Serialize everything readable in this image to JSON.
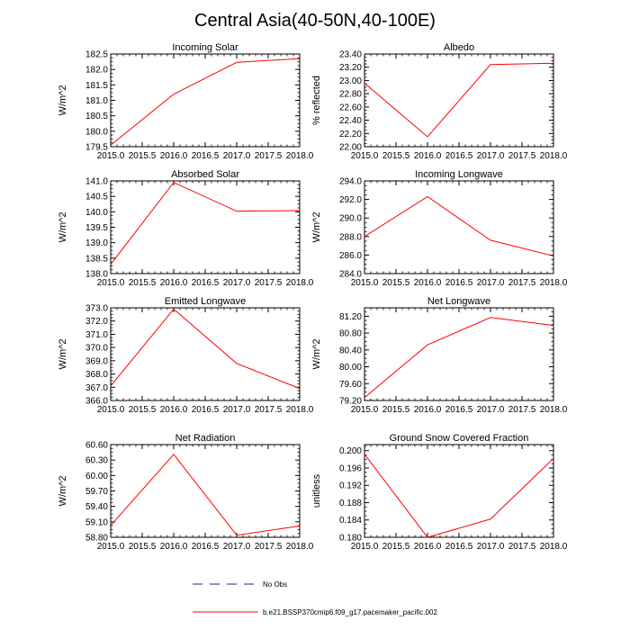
{
  "title": "Central Asia(40-50N,40-100E)",
  "chart_data": [
    {
      "type": "line",
      "title": "Incoming Solar",
      "ylabel": "W/m^2",
      "x": [
        2015.0,
        2016.0,
        2017.0,
        2018.0
      ],
      "xlim": [
        2015.0,
        2018.0
      ],
      "xticks": [
        "2015.0",
        "2015.5",
        "2016.0",
        "2016.5",
        "2017.0",
        "2017.5",
        "2018.0"
      ],
      "ylim": [
        179.5,
        182.5
      ],
      "yticks": [
        "179.5",
        "180.0",
        "180.5",
        "181.0",
        "181.5",
        "182.0",
        "182.5"
      ],
      "series": [
        {
          "name": "b.e21.BSSP370cmip6.f09_g17.pacemaker_pacific.002",
          "values": [
            179.55,
            181.2,
            182.23,
            182.35
          ]
        }
      ]
    },
    {
      "type": "line",
      "title": "Albedo",
      "ylabel": "% reflected",
      "x": [
        2015.0,
        2016.0,
        2017.0,
        2018.0
      ],
      "xlim": [
        2015.0,
        2018.0
      ],
      "xticks": [
        "2015.0",
        "2015.5",
        "2016.0",
        "2016.5",
        "2017.0",
        "2017.5",
        "2018.0"
      ],
      "ylim": [
        22.0,
        23.4
      ],
      "yticks": [
        "22.00",
        "22.20",
        "22.40",
        "22.60",
        "22.80",
        "23.00",
        "23.20",
        "23.40"
      ],
      "series": [
        {
          "name": "b.e21.BSSP370cmip6.f09_g17.pacemaker_pacific.002",
          "values": [
            22.96,
            22.15,
            23.24,
            23.26
          ]
        }
      ]
    },
    {
      "type": "line",
      "title": "Absorbed Solar",
      "ylabel": "W/m^2",
      "x": [
        2015.0,
        2016.0,
        2017.0,
        2018.0
      ],
      "xlim": [
        2015.0,
        2018.0
      ],
      "xticks": [
        "2015.0",
        "2015.5",
        "2016.0",
        "2016.5",
        "2017.0",
        "2017.5",
        "2018.0"
      ],
      "ylim": [
        138.0,
        141.0
      ],
      "yticks": [
        "138.0",
        "138.5",
        "139.0",
        "139.5",
        "140.0",
        "140.5",
        "141.0"
      ],
      "series": [
        {
          "name": "b.e21.BSSP370cmip6.f09_g17.pacemaker_pacific.002",
          "values": [
            138.3,
            140.95,
            140.02,
            140.04
          ]
        }
      ]
    },
    {
      "type": "line",
      "title": "Incoming Longwave",
      "ylabel": "W/m^2",
      "x": [
        2015.0,
        2016.0,
        2017.0,
        2018.0
      ],
      "xlim": [
        2015.0,
        2018.0
      ],
      "xticks": [
        "2015.0",
        "2015.5",
        "2016.0",
        "2016.5",
        "2017.0",
        "2017.5",
        "2018.0"
      ],
      "ylim": [
        284.0,
        294.0
      ],
      "yticks": [
        "284.0",
        "286.0",
        "288.0",
        "290.0",
        "292.0",
        "294.0"
      ],
      "series": [
        {
          "name": "b.e21.BSSP370cmip6.f09_g17.pacemaker_pacific.002",
          "values": [
            288.0,
            292.3,
            287.6,
            285.9
          ]
        }
      ]
    },
    {
      "type": "line",
      "title": "Emitted Longwave",
      "ylabel": "W/m^2",
      "x": [
        2015.0,
        2016.0,
        2017.0,
        2018.0
      ],
      "xlim": [
        2015.0,
        2018.0
      ],
      "xticks": [
        "2015.0",
        "2015.5",
        "2016.0",
        "2016.5",
        "2017.0",
        "2017.5",
        "2018.0"
      ],
      "ylim": [
        366.0,
        373.0
      ],
      "yticks": [
        "366.0",
        "367.0",
        "368.0",
        "369.0",
        "370.0",
        "371.0",
        "372.0",
        "373.0"
      ],
      "series": [
        {
          "name": "b.e21.BSSP370cmip6.f09_g17.pacemaker_pacific.002",
          "values": [
            367.1,
            372.9,
            368.8,
            366.9
          ]
        }
      ]
    },
    {
      "type": "line",
      "title": "Net Longwave",
      "ylabel": "W/m^2",
      "x": [
        2015.0,
        2016.0,
        2017.0,
        2018.0
      ],
      "xlim": [
        2015.0,
        2018.0
      ],
      "xticks": [
        "2015.0",
        "2015.5",
        "2016.0",
        "2016.5",
        "2017.0",
        "2017.5",
        "2018.0"
      ],
      "ylim": [
        79.2,
        81.4
      ],
      "yticks": [
        "79.20",
        "79.60",
        "80.00",
        "80.40",
        "80.80",
        "81.20"
      ],
      "series": [
        {
          "name": "b.e21.BSSP370cmip6.f09_g17.pacemaker_pacific.002",
          "values": [
            79.27,
            80.52,
            81.17,
            80.98
          ]
        }
      ]
    },
    {
      "type": "line",
      "title": "Net Radiation",
      "ylabel": "W/m^2",
      "x": [
        2015.0,
        2016.0,
        2017.0,
        2018.0
      ],
      "xlim": [
        2015.0,
        2018.0
      ],
      "xticks": [
        "2015.0",
        "2015.5",
        "2016.0",
        "2016.5",
        "2017.0",
        "2017.5",
        "2018.0"
      ],
      "ylim": [
        58.8,
        60.6
      ],
      "yticks": [
        "58.80",
        "59.10",
        "59.40",
        "59.70",
        "60.00",
        "60.30",
        "60.60"
      ],
      "series": [
        {
          "name": "b.e21.BSSP370cmip6.f09_g17.pacemaker_pacific.002",
          "values": [
            59.03,
            60.41,
            58.84,
            59.02
          ]
        }
      ]
    },
    {
      "type": "line",
      "title": "Ground Snow Covered Fraction",
      "ylabel": "unitless",
      "x": [
        2015.0,
        2016.0,
        2017.0,
        2018.0
      ],
      "xlim": [
        2015.0,
        2018.0
      ],
      "xticks": [
        "2015.0",
        "2015.5",
        "2016.0",
        "2016.5",
        "2017.0",
        "2017.5",
        "2018.0"
      ],
      "ylim": [
        0.18,
        0.2014
      ],
      "yticks": [
        "0.180",
        "0.184",
        "0.188",
        "0.192",
        "0.196",
        "0.200"
      ],
      "series": [
        {
          "name": "b.e21.BSSP370cmip6.f09_g17.pacemaker_pacific.002",
          "values": [
            0.1992,
            0.18,
            0.1842,
            0.1982
          ]
        }
      ]
    }
  ],
  "legend": [
    {
      "label": "No Obs",
      "color": "#1f1f8f",
      "style": "dashed"
    },
    {
      "label": "b.e21.BSSP370cmip6.f09_g17.pacemaker_pacific.002",
      "color": "#ff0000",
      "style": "solid"
    }
  ],
  "line_color": "#ff0000"
}
